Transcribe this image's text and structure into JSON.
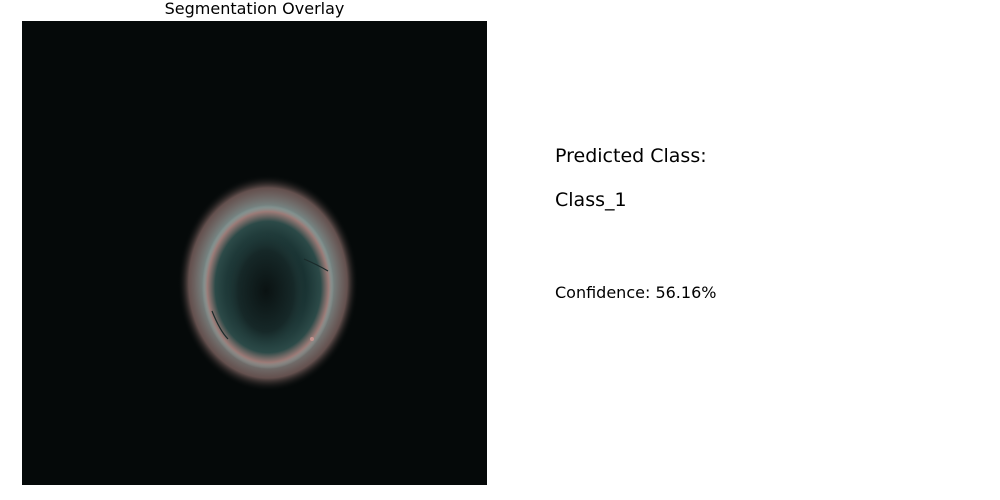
{
  "panel": {
    "title": "Segmentation Overlay"
  },
  "result": {
    "predicted_label": "Predicted Class:",
    "predicted_value": "Class_1",
    "confidence_text": "Confidence: 56.16%"
  }
}
